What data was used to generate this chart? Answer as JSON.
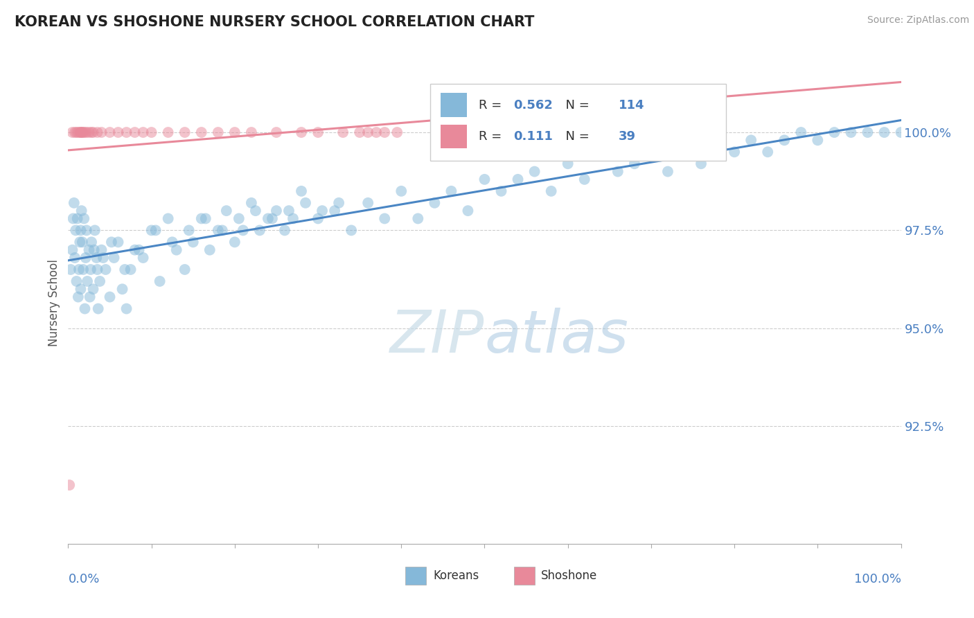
{
  "title": "KOREAN VS SHOSHONE NURSERY SCHOOL CORRELATION CHART",
  "source": "Source: ZipAtlas.com",
  "ylabel": "Nursery School",
  "xlim": [
    0.0,
    100.0
  ],
  "ylim": [
    89.5,
    101.8
  ],
  "yticks": [
    92.5,
    95.0,
    97.5,
    100.0
  ],
  "ytick_labels": [
    "92.5%",
    "95.0%",
    "97.5%",
    "100.0%"
  ],
  "korean_R": 0.562,
  "korean_N": 114,
  "shoshone_R": 0.111,
  "shoshone_N": 39,
  "korean_color": "#85b8d9",
  "shoshone_color": "#e8899a",
  "korean_line_color": "#4a86c4",
  "shoshone_line_color": "#e8899a",
  "legend_label_korean": "Koreans",
  "legend_label_shoshone": "Shoshone",
  "korean_x": [
    0.3,
    0.5,
    0.6,
    0.7,
    0.8,
    0.9,
    1.0,
    1.1,
    1.2,
    1.3,
    1.4,
    1.5,
    1.5,
    1.6,
    1.7,
    1.8,
    1.9,
    2.0,
    2.1,
    2.2,
    2.3,
    2.5,
    2.6,
    2.7,
    2.8,
    3.0,
    3.2,
    3.4,
    3.6,
    3.8,
    4.0,
    4.5,
    5.0,
    5.5,
    6.0,
    6.5,
    7.0,
    7.5,
    8.0,
    9.0,
    10.0,
    11.0,
    12.0,
    13.0,
    14.0,
    15.0,
    16.0,
    17.0,
    18.0,
    19.0,
    20.0,
    21.0,
    22.0,
    23.0,
    24.0,
    25.0,
    26.0,
    27.0,
    28.0,
    30.0,
    32.0,
    34.0,
    36.0,
    38.0,
    40.0,
    42.0,
    44.0,
    46.0,
    48.0,
    50.0,
    52.0,
    54.0,
    56.0,
    58.0,
    60.0,
    62.0,
    64.0,
    66.0,
    68.0,
    70.0,
    72.0,
    74.0,
    76.0,
    78.0,
    80.0,
    82.0,
    84.0,
    86.0,
    88.0,
    90.0,
    92.0,
    94.0,
    96.0,
    98.0,
    100.0,
    3.1,
    3.5,
    4.2,
    5.2,
    6.8,
    8.5,
    10.5,
    12.5,
    14.5,
    16.5,
    18.5,
    20.5,
    22.5,
    24.5,
    26.5,
    28.5,
    30.5,
    32.5
  ],
  "korean_y": [
    96.5,
    97.0,
    97.8,
    98.2,
    96.8,
    97.5,
    96.2,
    97.8,
    95.8,
    96.5,
    97.2,
    96.0,
    97.5,
    98.0,
    97.2,
    96.5,
    97.8,
    95.5,
    96.8,
    97.5,
    96.2,
    97.0,
    95.8,
    96.5,
    97.2,
    96.0,
    97.5,
    96.8,
    95.5,
    96.2,
    97.0,
    96.5,
    95.8,
    96.8,
    97.2,
    96.0,
    95.5,
    96.5,
    97.0,
    96.8,
    97.5,
    96.2,
    97.8,
    97.0,
    96.5,
    97.2,
    97.8,
    97.0,
    97.5,
    98.0,
    97.2,
    97.5,
    98.2,
    97.5,
    97.8,
    98.0,
    97.5,
    97.8,
    98.5,
    97.8,
    98.0,
    97.5,
    98.2,
    97.8,
    98.5,
    97.8,
    98.2,
    98.5,
    98.0,
    98.8,
    98.5,
    98.8,
    99.0,
    98.5,
    99.2,
    98.8,
    99.5,
    99.0,
    99.2,
    99.5,
    99.0,
    99.5,
    99.2,
    99.8,
    99.5,
    99.8,
    99.5,
    99.8,
    100.0,
    99.8,
    100.0,
    100.0,
    100.0,
    100.0,
    100.0,
    97.0,
    96.5,
    96.8,
    97.2,
    96.5,
    97.0,
    97.5,
    97.2,
    97.5,
    97.8,
    97.5,
    97.8,
    98.0,
    97.8,
    98.0,
    98.2,
    98.0,
    98.2
  ],
  "shoshone_x": [
    0.15,
    0.5,
    0.8,
    1.0,
    1.2,
    1.4,
    1.5,
    1.6,
    1.7,
    1.8,
    2.0,
    2.2,
    2.5,
    2.8,
    3.0,
    3.5,
    4.0,
    5.0,
    6.0,
    7.0,
    8.0,
    9.0,
    10.0,
    12.0,
    14.0,
    16.0,
    18.0,
    20.0,
    22.0,
    25.0,
    28.0,
    30.0,
    33.0,
    35.0,
    36.0,
    37.0,
    38.0,
    39.5
  ],
  "shoshone_y": [
    91.0,
    100.0,
    100.0,
    100.0,
    100.0,
    100.0,
    100.0,
    100.0,
    100.0,
    100.0,
    100.0,
    100.0,
    100.0,
    100.0,
    100.0,
    100.0,
    100.0,
    100.0,
    100.0,
    100.0,
    100.0,
    100.0,
    100.0,
    100.0,
    100.0,
    100.0,
    100.0,
    100.0,
    100.0,
    100.0,
    100.0,
    100.0,
    100.0,
    100.0,
    100.0,
    100.0,
    100.0,
    100.0
  ]
}
